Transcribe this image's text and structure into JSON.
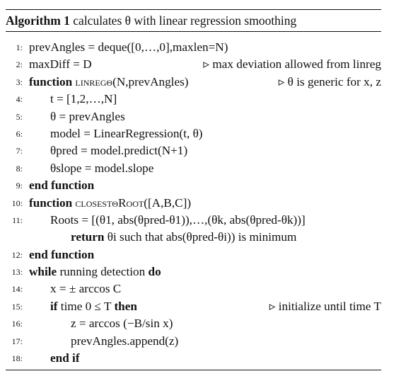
{
  "algorithm": {
    "label": "Algorithm 1",
    "caption": "calculates θ with linear regression smoothing",
    "lines": [
      {
        "n": "1:",
        "text": "prevAngles = deque([0,…,0],maxlen=N)"
      },
      {
        "n": "2:",
        "text": "maxDiff = D",
        "comment": "▹ max deviation allowed from linreg"
      },
      {
        "n": "3:",
        "kw": "function",
        "fn": "linregθ",
        "text": "(N,prevAngles)",
        "comment": "▹ θ is generic for x, z"
      },
      {
        "n": "4:",
        "text": "t = [1,2,…,N]"
      },
      {
        "n": "5:",
        "text": "θ = prevAngles"
      },
      {
        "n": "6:",
        "text": "model = LinearRegression(t, θ)"
      },
      {
        "n": "7:",
        "text": "θpred = model.predict(N+1)"
      },
      {
        "n": "8:",
        "text": "θslope = model.slope"
      },
      {
        "n": "9:",
        "kw": "end function"
      },
      {
        "n": "10:",
        "kw": "function",
        "fn": "closestθRoot",
        "text": "([A,B,C])"
      },
      {
        "n": "11:",
        "text": "Roots = [(θ1, abs(θpred-θ1)),…,(θk, abs(θpred-θk))]"
      },
      {
        "n": "",
        "kw": "return",
        "text": "θi such that abs(θpred-θi)) is minimum"
      },
      {
        "n": "12:",
        "kw": "end function"
      },
      {
        "n": "13:",
        "kw": "while",
        "text": "running detection",
        "kw2": "do"
      },
      {
        "n": "14:",
        "text": "x = ± arccos C"
      },
      {
        "n": "15:",
        "kw": "if",
        "text": "time 0 ≤ T",
        "kw2": "then",
        "comment": "▹ initialize until time T"
      },
      {
        "n": "16:",
        "text": "z = arccos (−B/sin x)"
      },
      {
        "n": "17:",
        "text": "prevAngles.append(z)"
      },
      {
        "n": "18:",
        "kw": "end if"
      }
    ]
  }
}
